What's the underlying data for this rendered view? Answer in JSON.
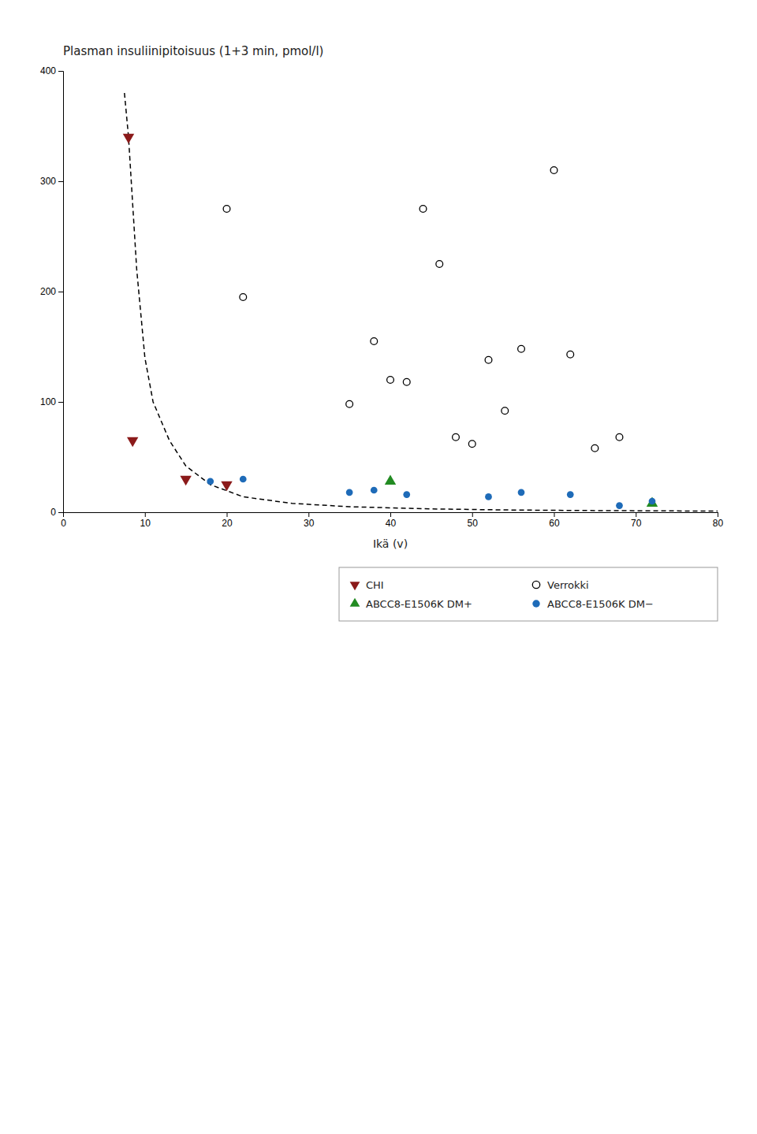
{
  "chart_data": {
    "type": "scatter",
    "title": "Plasman insuliinipitoisuus (1+3 min, pmol/l)",
    "xlabel": "Ikä (v)",
    "xlim": [
      0,
      80
    ],
    "ylim": [
      0,
      400
    ],
    "xticks": [
      0,
      10,
      20,
      30,
      40,
      50,
      60,
      70,
      80
    ],
    "yticks": [
      0,
      100,
      200,
      300,
      400
    ],
    "grid": false,
    "legend": "bottom",
    "series": [
      {
        "type": "line",
        "line_style": "dashed",
        "color": "#000000",
        "x": [
          7.5,
          8,
          9,
          10,
          11,
          13,
          15,
          18,
          22,
          28,
          35,
          45,
          55,
          65,
          80
        ],
        "values": [
          380,
          340,
          220,
          140,
          100,
          65,
          42,
          25,
          14,
          8,
          5,
          3,
          2,
          1.5,
          1
        ]
      },
      {
        "name": "CHI",
        "type": "scatter",
        "marker": "triangle-down",
        "color": "#8B1A1A",
        "x": [
          8.0,
          8.5,
          15.0,
          20.0
        ],
        "values": [
          340,
          65,
          30,
          25
        ]
      },
      {
        "name": "Verrokki",
        "type": "scatter",
        "marker": "circle-open",
        "color": "#000000",
        "x": [
          20,
          22,
          35,
          38,
          40,
          42,
          44,
          46,
          48,
          50,
          52,
          54,
          56,
          60,
          62,
          65,
          68
        ],
        "values": [
          275,
          195,
          98,
          155,
          120,
          118,
          275,
          225,
          68,
          62,
          138,
          92,
          148,
          310,
          143,
          58,
          68
        ]
      },
      {
        "name": "ABCC8-E1506K DM+",
        "type": "scatter",
        "marker": "triangle-up",
        "color": "#228B22",
        "x": [
          40,
          72
        ],
        "values": [
          28,
          8
        ]
      },
      {
        "name": "ABCC8-E1506K DM−",
        "type": "scatter",
        "marker": "circle",
        "color": "#1E6BB8",
        "x": [
          18,
          22,
          35,
          38,
          42,
          52,
          56,
          62,
          68,
          72
        ],
        "values": [
          28,
          30,
          18,
          20,
          16,
          14,
          18,
          16,
          6,
          10
        ]
      }
    ]
  }
}
